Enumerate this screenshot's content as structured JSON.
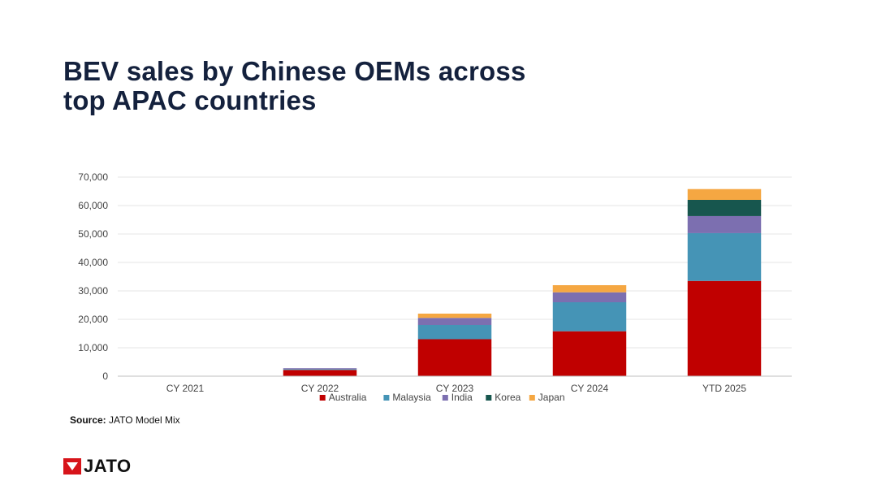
{
  "title_lines": [
    "BEV sales by Chinese OEMs across",
    "top APAC countries"
  ],
  "source": {
    "label": "Source:",
    "text": "JATO Model Mix"
  },
  "logo": {
    "text": "JATO",
    "icon": "jato-logo-icon",
    "color": "#d7141a"
  },
  "chart_data": {
    "type": "bar",
    "stacked": true,
    "categories": [
      "CY 2021",
      "CY 2022",
      "CY 2023",
      "CY 2024",
      "YTD 2025"
    ],
    "series": [
      {
        "name": "Australia",
        "color": "#c00000",
        "values": [
          0,
          2200,
          13000,
          15800,
          33500
        ]
      },
      {
        "name": "Malaysia",
        "color": "#4594b6",
        "values": [
          0,
          300,
          5000,
          10200,
          16800
        ]
      },
      {
        "name": "India",
        "color": "#7c6fb0",
        "values": [
          0,
          300,
          2500,
          3500,
          6000
        ]
      },
      {
        "name": "Korea",
        "color": "#17564e",
        "values": [
          0,
          0,
          0,
          0,
          5700
        ]
      },
      {
        "name": "Japan",
        "color": "#f5a742",
        "values": [
          0,
          0,
          1500,
          2500,
          3800
        ]
      }
    ],
    "ylim": [
      0,
      70000
    ],
    "yticks": [
      0,
      10000,
      20000,
      30000,
      40000,
      50000,
      60000,
      70000
    ],
    "ytick_labels": [
      "0",
      "10,000",
      "20,000",
      "30,000",
      "40,000",
      "50,000",
      "60,000",
      "70,000"
    ],
    "grid": true,
    "legend_position": "bottom"
  }
}
